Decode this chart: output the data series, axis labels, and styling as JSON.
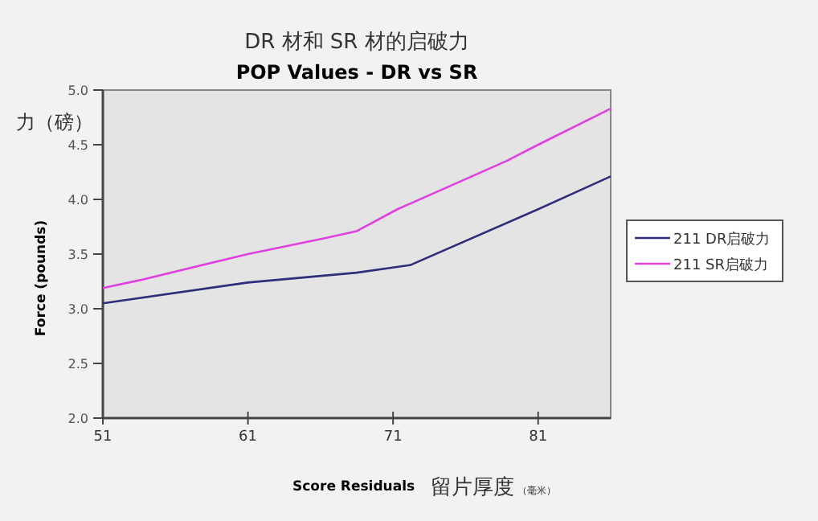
{
  "chart_data": {
    "type": "line",
    "title": "DR 材和 SR 材的启破力",
    "subtitle": "POP Values - DR vs SR",
    "xlabel": "Score Residuals",
    "ylabel": "Force (pounds)",
    "annotations": [
      "力（磅）",
      "留片厚度",
      "（毫米）"
    ],
    "xlim": [
      51,
      86
    ],
    "xticks": [
      51,
      61,
      71,
      81
    ],
    "ylim": [
      2.0,
      5.0
    ],
    "yticks": [
      {
        "value": 2.0,
        "label": "2.0"
      },
      {
        "value": 2.5,
        "label": "2.5"
      },
      {
        "value": 3.0,
        "label": "3.0"
      },
      {
        "value": 3.5,
        "label": "3.5"
      },
      {
        "value": 4.0,
        "label": "4.0"
      },
      {
        "value": 4.5,
        "label": "4.5"
      },
      {
        "value": 5.0,
        "label": "5.0"
      }
    ],
    "legend": "right",
    "series": [
      {
        "name": "211 DR启破力",
        "color": "#2e2e7a",
        "x": [
          51,
          61,
          68.5,
          72.2,
          81,
          86
        ],
        "values": [
          3.05,
          3.24,
          3.33,
          3.4,
          3.91,
          4.21
        ]
      },
      {
        "name": "211 SR启破力",
        "color": "#e040e0",
        "x": [
          51,
          53.5,
          61,
          66.1,
          68.5,
          71.3,
          78.8,
          81,
          86
        ],
        "values": [
          3.19,
          3.26,
          3.5,
          3.64,
          3.71,
          3.91,
          4.35,
          4.5,
          4.83
        ]
      }
    ]
  }
}
